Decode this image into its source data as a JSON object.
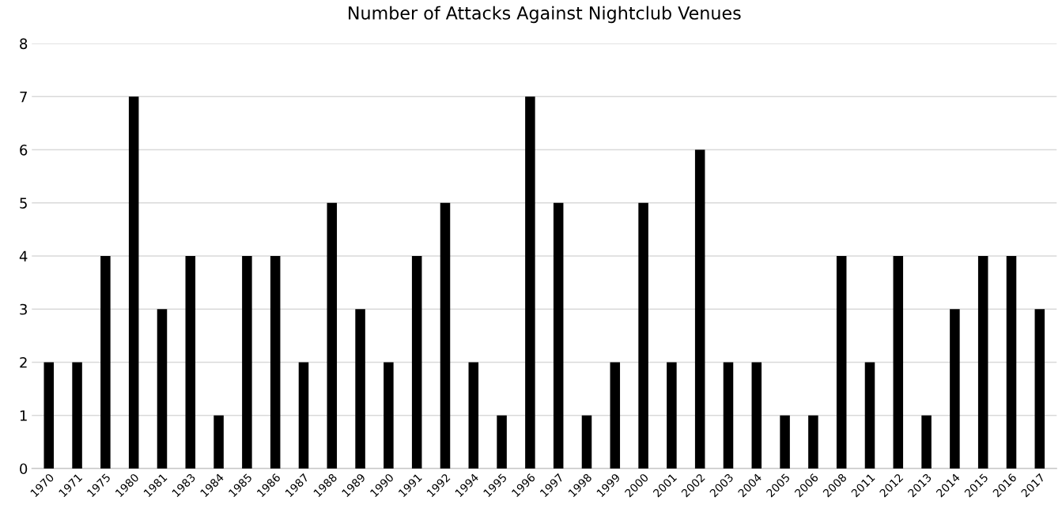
{
  "chart_data": {
    "type": "bar",
    "title": "Number of Attacks Against Nightclub Venues",
    "categories": [
      "1970",
      "1971",
      "1975",
      "1980",
      "1981",
      "1983",
      "1984",
      "1985",
      "1986",
      "1987",
      "1988",
      "1989",
      "1990",
      "1991",
      "1992",
      "1994",
      "1995",
      "1996",
      "1997",
      "1998",
      "1999",
      "2000",
      "2001",
      "2002",
      "2003",
      "2004",
      "2005",
      "2006",
      "2008",
      "2011",
      "2012",
      "2013",
      "2014",
      "2015",
      "2016",
      "2017"
    ],
    "values": [
      2,
      2,
      4,
      7,
      3,
      4,
      1,
      4,
      4,
      2,
      5,
      3,
      2,
      4,
      5,
      2,
      1,
      7,
      5,
      1,
      2,
      5,
      2,
      6,
      2,
      2,
      1,
      1,
      4,
      2,
      4,
      1,
      3,
      4,
      4,
      3
    ],
    "color": "#000000",
    "ylim": [
      0,
      8
    ],
    "yticks": [
      0,
      1,
      2,
      3,
      4,
      5,
      6,
      7,
      8
    ],
    "grid": "y",
    "legend": false
  }
}
